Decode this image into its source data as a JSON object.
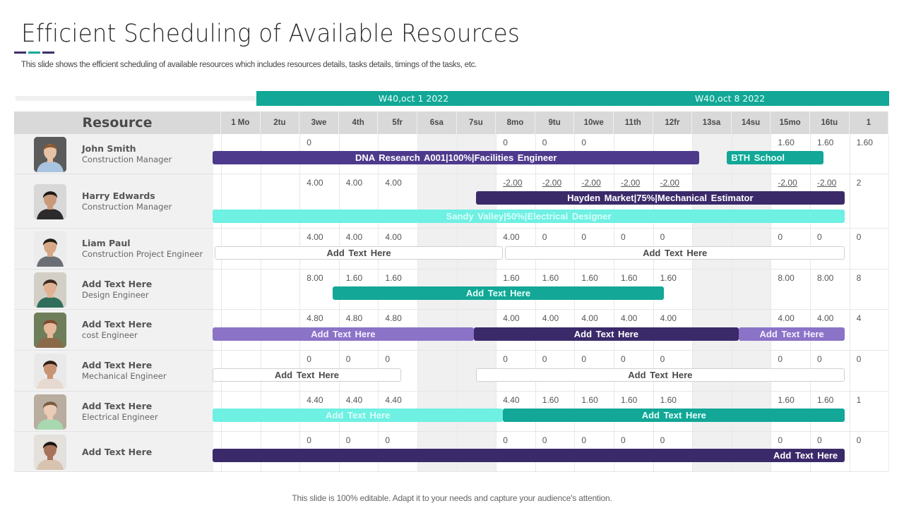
{
  "page": {
    "title": "Efficient Scheduling of Available Resources",
    "subtitle": "This slide shows the efficient scheduling of available resources which includes resources details, tasks details, timings of the tasks, etc.",
    "footer": "This slide is 100% editable. Adapt it to your needs and capture your audience's attention.",
    "underline_colors": [
      "#3d2f6b",
      "#12a796",
      "#3d2f6b"
    ]
  },
  "colors": {
    "teal": "#12a796",
    "light_teal": "#6ef0e2",
    "purple": "#4e3a8c",
    "dark_purple": "#3b2a6a",
    "lavender": "#8b73c7"
  },
  "weeks": [
    {
      "label": "W40,oct 1 2022"
    },
    {
      "label": "W40,oct 8 2022"
    }
  ],
  "table": {
    "resource_header": "Resource",
    "days": [
      "1 Mo",
      "2tu",
      "3we",
      "4th",
      "5fr",
      "6sa",
      "7su",
      "8mo",
      "9tu",
      "10we",
      "11th",
      "12fr",
      "13sa",
      "14su",
      "15mo",
      "16tu",
      "1"
    ],
    "weekend_indices": [
      5,
      6,
      12,
      13
    ]
  },
  "resources": [
    {
      "name": "John Smith",
      "role": "Construction Manager",
      "values": [
        "",
        "",
        "0",
        "",
        "",
        "",
        "",
        "0",
        "0",
        "0",
        "",
        "",
        "",
        "",
        "1.60",
        "1.60",
        "1.60"
      ],
      "underlined": false,
      "bars": [
        {
          "label": "DNA  Research A001|100%|Facilities  Engineer",
          "start": 0,
          "end": 12.4,
          "color": "#4e3a8c",
          "text": "#ffffff",
          "align": "center",
          "lane": 0
        },
        {
          "label": "BTH  School",
          "start": 13.1,
          "end": 15.55,
          "color": "#12a796",
          "text": "#e6fffb",
          "align": "left",
          "lane": 0
        }
      ]
    },
    {
      "name": "Harry Edwards",
      "role": "Construction Manager",
      "values": [
        "",
        "",
        "4.00",
        "4.00",
        "4.00",
        "",
        "",
        "-2.00",
        "-2.00",
        "-2.00",
        "-2.00",
        "-2.00",
        "",
        "",
        "-2.00",
        "-2.00",
        "2"
      ],
      "underlined": true,
      "bars": [
        {
          "label": "Hayden Market|75%|Mechanical  Estimator",
          "start": 6.7,
          "end": 16.1,
          "color": "#3b2a6a",
          "text": "#ffffff",
          "align": "center",
          "lane": 0
        },
        {
          "label": "Sandy Valley|50%|Electrical  Designer",
          "start": 0,
          "end": 16.1,
          "color": "#6ef0e2",
          "text": "#d8fffb",
          "align": "center",
          "lane": 1
        }
      ]
    },
    {
      "name": "Liam Paul",
      "role": "Construction Project Engineer",
      "values": [
        "",
        "",
        "4.00",
        "4.00",
        "4.00",
        "",
        "",
        "4.00",
        "0",
        "0",
        "0",
        "0",
        "",
        "",
        "0",
        "0",
        "0"
      ],
      "underlined": false,
      "bars": [
        {
          "label": "Add  Text Here",
          "start": 0.05,
          "end": 7.4,
          "color": "outline",
          "text": "#4a4a4a",
          "align": "center",
          "lane": 0
        },
        {
          "label": "Add  Text Here",
          "start": 7.45,
          "end": 16.1,
          "color": "outline",
          "text": "#4a4a4a",
          "align": "center",
          "lane": 0
        }
      ]
    },
    {
      "name": "Add Text Here",
      "role": "Design Engineer",
      "values": [
        "",
        "",
        "8.00",
        "1.60",
        "1.60",
        "",
        "",
        "1.60",
        "1.60",
        "1.60",
        "1.60",
        "1.60",
        "",
        "",
        "8.00",
        "8.00",
        "8"
      ],
      "underlined": false,
      "bars": [
        {
          "label": "Add  Text Here",
          "start": 3.05,
          "end": 11.5,
          "color": "#12a796",
          "text": "#e6fffb",
          "align": "center",
          "lane": 0
        }
      ]
    },
    {
      "name": "Add Text Here",
      "role": "cost Engineer",
      "values": [
        "",
        "",
        "4.80",
        "4.80",
        "4.80",
        "",
        "",
        "4.00",
        "4.00",
        "4.00",
        "4.00",
        "4.00",
        "",
        "",
        "4.00",
        "4.00",
        "4"
      ],
      "underlined": false,
      "bars": [
        {
          "label": "Add  Text Here",
          "start": 0,
          "end": 6.65,
          "color": "#8b73c7",
          "text": "#f3efff",
          "align": "center",
          "lane": 0
        },
        {
          "label": "Add  Text Here",
          "start": 6.65,
          "end": 13.4,
          "color": "#3b2a6a",
          "text": "#ffffff",
          "align": "center",
          "lane": 0
        },
        {
          "label": "Add  Text Here",
          "start": 13.4,
          "end": 16.1,
          "color": "#8b73c7",
          "text": "#f3efff",
          "align": "center",
          "lane": 0
        }
      ]
    },
    {
      "name": "Add Text Here",
      "role": "Mechanical Engineer",
      "values": [
        "",
        "",
        "0",
        "0",
        "0",
        "",
        "",
        "0",
        "0",
        "0",
        "0",
        "0",
        "",
        "",
        "0",
        "0",
        "0"
      ],
      "underlined": false,
      "bars": [
        {
          "label": "Add  Text Here",
          "start": 0,
          "end": 4.8,
          "color": "outline",
          "text": "#4a4a4a",
          "align": "center",
          "lane": 0
        },
        {
          "label": "Add  Text Here",
          "start": 6.7,
          "end": 16.1,
          "color": "outline",
          "text": "#4a4a4a",
          "align": "center",
          "lane": 0
        }
      ]
    },
    {
      "name": "Add Text Here",
      "role": "Electrical Engineer",
      "values": [
        "",
        "",
        "4.40",
        "4.40",
        "4.40",
        "",
        "",
        "4.40",
        "1.60",
        "1.60",
        "1.60",
        "1.60",
        "",
        "",
        "1.60",
        "1.60",
        "1"
      ],
      "underlined": false,
      "bars": [
        {
          "label": "Add  Text Here",
          "start": 0,
          "end": 7.4,
          "color": "#6ef0e2",
          "text": "#dcfffb",
          "align": "center",
          "lane": 0
        },
        {
          "label": "Add  Text Here",
          "start": 7.4,
          "end": 16.1,
          "color": "#12a796",
          "text": "#e6fffb",
          "align": "center",
          "lane": 0
        }
      ]
    },
    {
      "name": "Add Text Here",
      "role": "",
      "values": [
        "",
        "",
        "0",
        "0",
        "0",
        "",
        "",
        "0",
        "0",
        "0",
        "0",
        "0",
        "",
        "",
        "0",
        "0",
        "0"
      ],
      "underlined": false,
      "bars": [
        {
          "label": "Add  Text Here",
          "start": 0,
          "end": 16.1,
          "color": "#3b2a6a",
          "text": "#ffffff",
          "align": "right",
          "lane": 0
        }
      ]
    }
  ],
  "avatars": [
    {
      "icon": "person-photo",
      "skin": "#e8c2a4",
      "hair": "#8a5a34",
      "shirt": "#a9c4e0",
      "bg": "#5b5b5b"
    },
    {
      "icon": "person-photo",
      "skin": "#c99a7a",
      "hair": "#1e1a18",
      "shirt": "#2c2a2a",
      "bg": "#d8d8d8"
    },
    {
      "icon": "person-photo",
      "skin": "#d6a887",
      "hair": "#241c16",
      "shirt": "#6b6e74",
      "bg": "#ececec"
    },
    {
      "icon": "person-photo",
      "skin": "#e0b293",
      "hair": "#3b2a22",
      "shirt": "#2f6e5a",
      "bg": "#d4cfc6"
    },
    {
      "icon": "person-photo",
      "skin": "#e6b99b",
      "hair": "#7d4a30",
      "shirt": "#8b6a4a",
      "bg": "#6e7e5a"
    },
    {
      "icon": "person-photo",
      "skin": "#c99474",
      "hair": "#2e2018",
      "shirt": "#e6d9cf",
      "bg": "#e9e9e9"
    },
    {
      "icon": "person-photo",
      "skin": "#ebcbb6",
      "hair": "#7a5a40",
      "shirt": "#a8d8b0",
      "bg": "#b8ad9e"
    },
    {
      "icon": "person-photo",
      "skin": "#a8725a",
      "hair": "#1a1412",
      "shirt": "#d8c2b0",
      "bg": "#e4e0dc"
    }
  ]
}
